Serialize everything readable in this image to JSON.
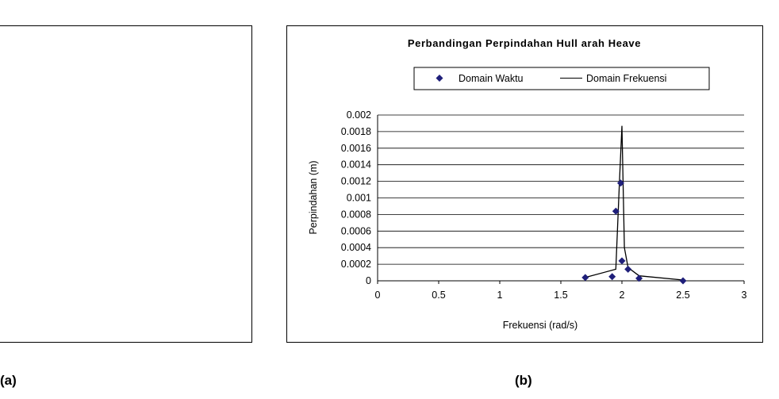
{
  "panels": {
    "a_label": "(a)",
    "b_label": "(b)"
  },
  "chart_data": {
    "type": "line",
    "title": "Perbandingan Perpindahan Hull arah Heave",
    "xlabel": "Frekuensi (rad/s)",
    "ylabel": "Perpindahan (m)",
    "xlim": [
      0,
      3
    ],
    "ylim": [
      0,
      0.002
    ],
    "xticks": [
      "0",
      "0.5",
      "1",
      "1.5",
      "2",
      "2.5",
      "3"
    ],
    "yticks": [
      "0",
      "0.0002",
      "0.0004",
      "0.0006",
      "0.0008",
      "0.001",
      "0.0012",
      "0.0014",
      "0.0016",
      "0.0018",
      "0.002"
    ],
    "grid": "horizontal",
    "legend_position": "top",
    "series": [
      {
        "name": "Domain Waktu",
        "kind": "scatter",
        "marker": "diamond",
        "color": "#1f1f7a",
        "x": [
          1.7,
          1.92,
          1.95,
          1.99,
          2.0,
          2.05,
          2.14,
          2.5
        ],
        "y": [
          4e-05,
          5e-05,
          0.00084,
          0.00118,
          0.00024,
          0.00014,
          3e-05,
          0.0
        ]
      },
      {
        "name": "Domain Frekuensi",
        "kind": "line",
        "color": "#000000",
        "x": [
          1.7,
          1.95,
          1.98,
          2.0,
          2.02,
          2.05,
          2.14,
          2.5
        ],
        "y": [
          4e-05,
          0.00014,
          0.0012,
          0.00187,
          0.0004,
          0.00016,
          6e-05,
          1e-05
        ]
      }
    ]
  }
}
